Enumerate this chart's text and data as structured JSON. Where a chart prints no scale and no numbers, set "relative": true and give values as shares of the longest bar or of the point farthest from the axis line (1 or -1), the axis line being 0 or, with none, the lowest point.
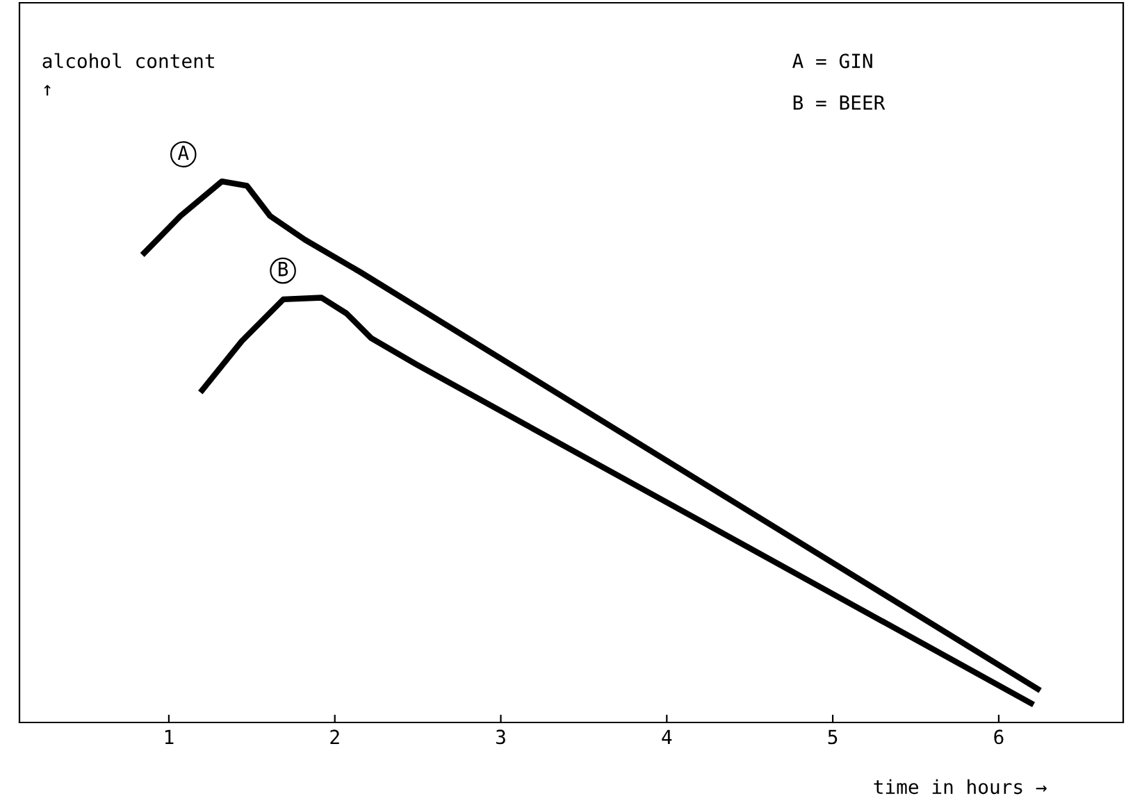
{
  "chart_data": {
    "type": "line",
    "relative": true,
    "ylabel": "alcohol content\n↑",
    "xlabel": "time in hours →",
    "xlim": [
      0.1,
      6.75
    ],
    "xticks": [
      1,
      2,
      3,
      4,
      5,
      6
    ],
    "annotations": [
      "A = GIN",
      "B = BEER"
    ],
    "grid": false,
    "legend": false,
    "marker": "none",
    "line_style": "solid",
    "series": [
      {
        "name": "A",
        "color": "#000000",
        "x": [
          0.84,
          1.07,
          1.32,
          1.47,
          1.61,
          1.82,
          2.15,
          6.25
        ],
        "values": [
          0.864,
          0.936,
          1,
          0.992,
          0.936,
          0.892,
          0.833,
          0.059
        ]
      },
      {
        "name": "B",
        "color": "#000000",
        "x": [
          1.19,
          1.44,
          1.69,
          1.92,
          2.07,
          2.22,
          2.49,
          6.21
        ],
        "values": [
          0.61,
          0.705,
          0.782,
          0.785,
          0.756,
          0.71,
          0.662,
          0.033
        ]
      }
    ]
  }
}
